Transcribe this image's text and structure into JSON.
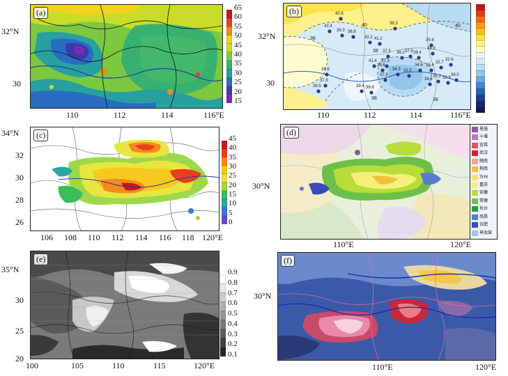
{
  "panels": {
    "a": {
      "label": "(a)",
      "y_ticks": [
        "32°N",
        "30"
      ],
      "x_ticks": [
        "110",
        "112",
        "114",
        "116°E"
      ],
      "colorbar": [
        "65",
        "60",
        "55",
        "50",
        "45",
        "40",
        "35",
        "30",
        "25",
        "20",
        "15"
      ]
    },
    "b": {
      "label": "(b)",
      "y_ticks": [
        "32°N",
        "30"
      ],
      "x_ticks": [
        "110",
        "112",
        "114",
        "116°E"
      ],
      "contour_labels": [
        "40",
        "40",
        "38",
        "38",
        "38",
        "38"
      ],
      "station_values": [
        "40.8",
        "42.4",
        "39.3",
        "36.9",
        "42.2",
        "41.2",
        "38.3",
        "37.3",
        "38.2",
        "37.5",
        "38.4",
        "35.6",
        "38.9",
        "37.3",
        "41.4",
        "39.6",
        "37.9",
        "34.3",
        "33.5",
        "34.6",
        "35.4",
        "32.7",
        "32.6",
        "38.9",
        "37.9",
        "36.5",
        "34.6",
        "35.2",
        "33.3",
        "36.0",
        "39.4",
        "39.8"
      ]
    },
    "c": {
      "label": "(c)",
      "y_ticks": [
        "34°N",
        "32",
        "30",
        "28",
        "26"
      ],
      "x_ticks": [
        "106",
        "108",
        "110",
        "112",
        "114",
        "116",
        "118",
        "120°E"
      ],
      "colorbar": [
        "45",
        "40",
        "35",
        "30",
        "25",
        "20",
        "15",
        "10",
        "5",
        "0"
      ]
    },
    "d": {
      "label": "(d)",
      "y_ticks": [
        "30°N"
      ],
      "x_ticks": [
        "110°E",
        "120°E"
      ],
      "legend": [
        "恩施",
        "十堰",
        "宜昌",
        "武汉",
        "随南",
        "荆南",
        "万州",
        "重庆",
        "安康",
        "常德",
        "长沙",
        "南昌",
        "合肥",
        "神龙架"
      ]
    },
    "e": {
      "label": "(e)",
      "y_ticks": [
        "35°N",
        "30",
        "25",
        "20"
      ],
      "x_ticks": [
        "100",
        "105",
        "110",
        "115",
        "120°E"
      ],
      "colorbar": [
        "0.9",
        "0.8",
        "0.7",
        "0.6",
        "0.5",
        "0.4",
        "0.3",
        "0.2",
        "0.1"
      ]
    },
    "f": {
      "label": "(f)",
      "y_ticks": [
        "30°N"
      ],
      "x_ticks": [
        "110°E",
        "120°E"
      ]
    }
  },
  "colors": {
    "cb_a": [
      "#c01818",
      "#e84020",
      "#f08a1c",
      "#f4d21c",
      "#c8dc2a",
      "#7cc840",
      "#38b070",
      "#28a0a0",
      "#2a6cc0",
      "#3a3aa8",
      "#7a2cb0"
    ],
    "cb_b": [
      "#c01818",
      "#e03a1e",
      "#f26a1c",
      "#f89a1c",
      "#fcc01e",
      "#fde24a",
      "#fef08a",
      "#fffbd0",
      "#eef6fc",
      "#d6eaf8",
      "#b8dbf2",
      "#94c6ea",
      "#6aa8dc",
      "#4486c8",
      "#2a62b2",
      "#1c3e92",
      "#182870",
      "#141a52"
    ],
    "cb_c": [
      "#c81818",
      "#e8401e",
      "#f48a1e",
      "#f8c81e",
      "#e8e640",
      "#9ed84a",
      "#3cbc5a",
      "#2aa6a6",
      "#3a7cd0",
      "#6a4ac0"
    ],
    "legend_d": [
      "#8c5aa0",
      "#c07ab8",
      "#e84a6a",
      "#e01e2a",
      "#f4a0a0",
      "#f0c23a",
      "#f8e25a",
      "#f4f07a",
      "#b8dc3a",
      "#6cc048",
      "#2e9a3c",
      "#5a7ad0",
      "#3a4ab8",
      "#9ec4e8"
    ]
  }
}
